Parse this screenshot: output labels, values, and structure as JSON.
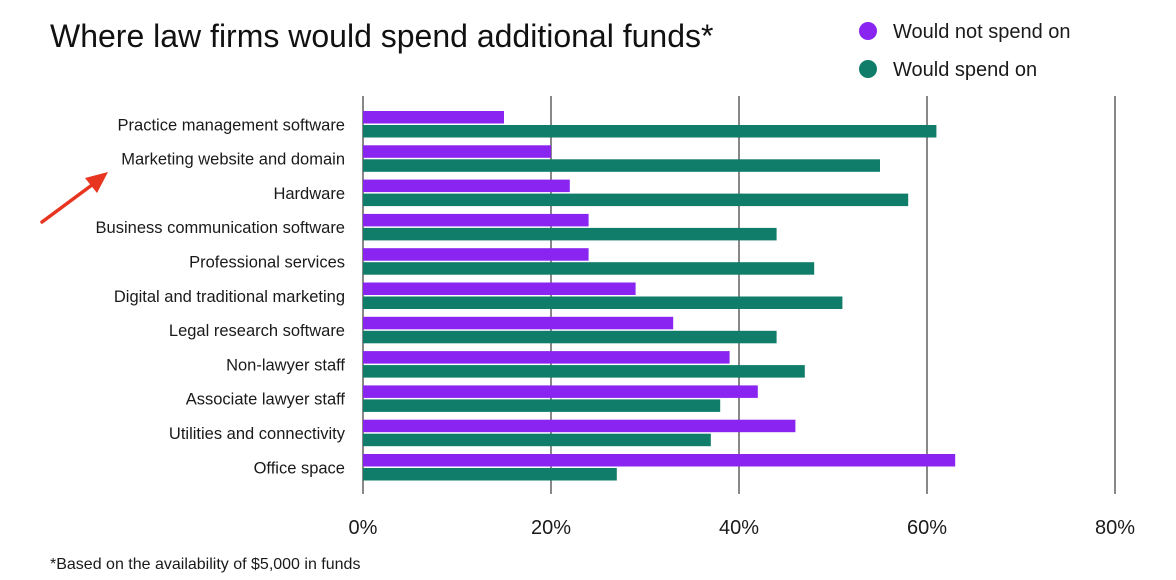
{
  "colors": {
    "not_spend": "#8a24f0",
    "spend": "#0f7d6a",
    "grid": "#6b6b6b",
    "annotation_arrow": "#e8351f"
  },
  "chart_data": {
    "type": "bar",
    "orientation": "horizontal",
    "title": "Where law firms would spend additional funds*",
    "categories": [
      "Practice management software",
      "Marketing website and domain",
      "Hardware",
      "Business communication software",
      "Professional services",
      "Digital and traditional marketing",
      "Legal research software",
      "Non-lawyer staff",
      "Associate lawyer staff",
      "Utilities and connectivity",
      "Office space"
    ],
    "series": [
      {
        "name": "Would not spend on",
        "color": "#8a24f0",
        "values": [
          15,
          20,
          22,
          24,
          24,
          29,
          33,
          39,
          42,
          46,
          63
        ]
      },
      {
        "name": "Would spend on",
        "color": "#0f7d6a",
        "values": [
          61,
          55,
          58,
          44,
          48,
          51,
          44,
          47,
          38,
          37,
          27
        ]
      }
    ],
    "xlim": [
      0,
      80
    ],
    "x_ticks": [
      0,
      20,
      40,
      60,
      80
    ],
    "x_tick_labels": [
      "0%",
      "20%",
      "40%",
      "60%",
      "80%"
    ],
    "grid": true,
    "legend_position": "top-right",
    "annotation": {
      "type": "arrow",
      "points_to": "Marketing website and domain"
    },
    "footnote": "*Based on the availability of $5,000 in funds"
  }
}
